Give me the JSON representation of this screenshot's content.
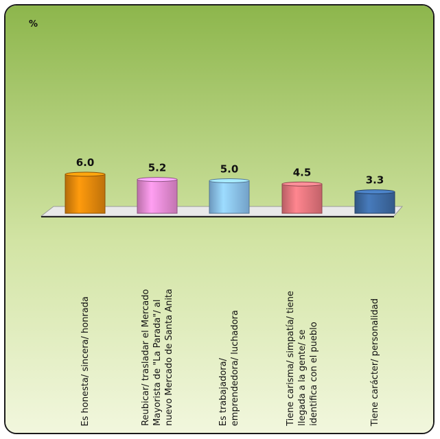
{
  "chart_data": {
    "type": "bar",
    "unit_label": "%",
    "categories": [
      "Es honesta/ sincera/ honrada",
      "Reubicar/ trasladar el Mercado\nMayorista de \"La Parada\"/ al\nnuevo Mercado de Santa Anita",
      "Es trabajadora/\nemprendedora/ luchadora",
      "Tiene carisma/ simpatía/ tiene\nllegada a la gente/ se\nidentifica con el pueblo",
      "Tiene carácter/ personalidad"
    ],
    "values": [
      6.0,
      5.2,
      5.0,
      4.5,
      3.3
    ],
    "value_labels": [
      "6.0",
      "5.2",
      "5.0",
      "4.5",
      "3.3"
    ],
    "bar_colors": [
      "#e88a0c",
      "#ee8ed8",
      "#8cc4f4",
      "#ec7880",
      "#3f6ea8"
    ],
    "background": {
      "top": "#8db64c",
      "bottom": "#f2f7de"
    },
    "grid": false,
    "legend": "none"
  }
}
